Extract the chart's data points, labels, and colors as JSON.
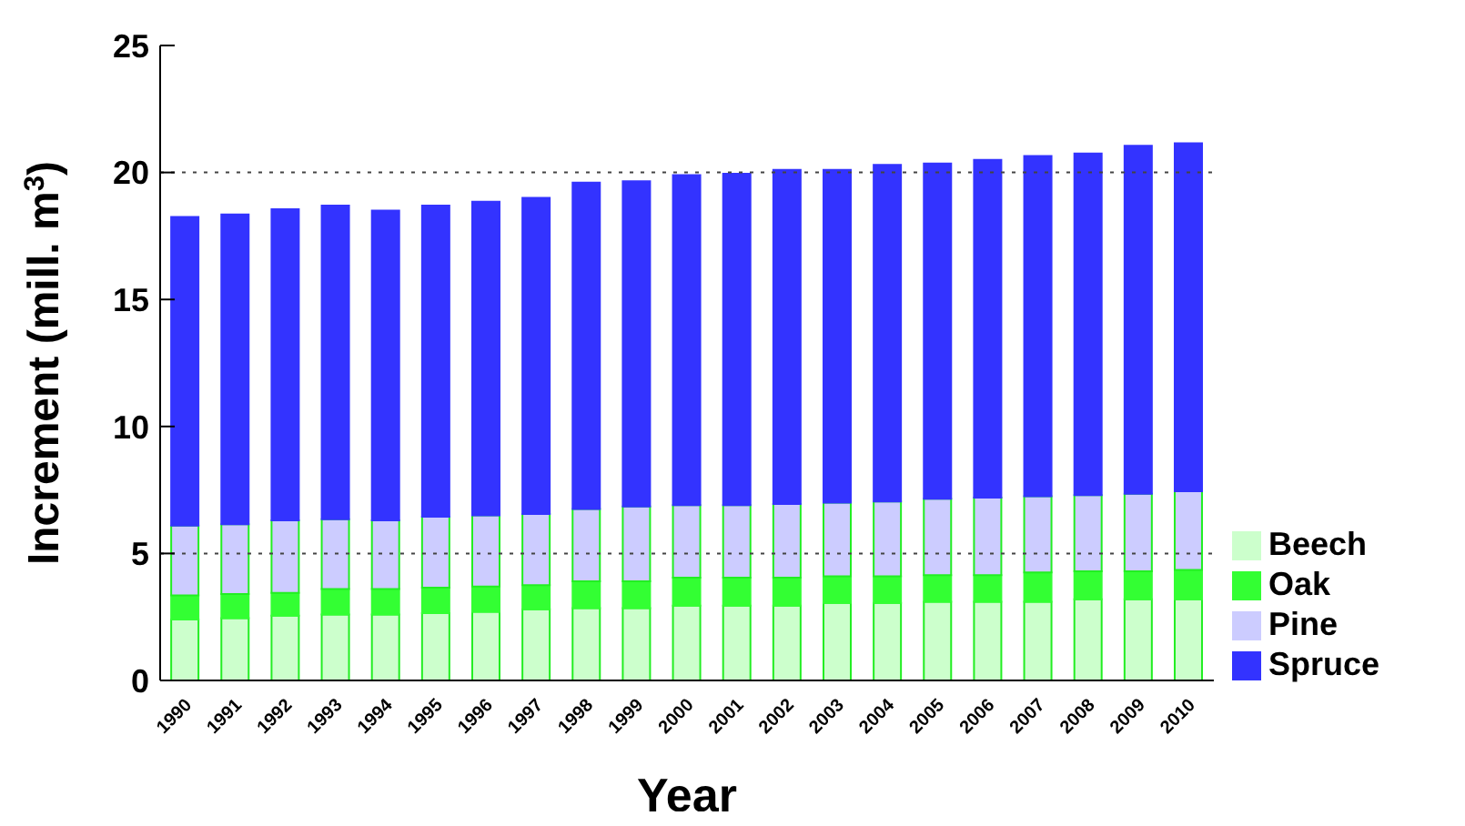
{
  "chart_data": {
    "type": "bar",
    "stacked": true,
    "xlabel": "Year",
    "ylabel": "Increment (mill. m$^{3}$)",
    "categories": [
      "1990",
      "1991",
      "1992",
      "1993",
      "1994",
      "1995",
      "1996",
      "1997",
      "1998",
      "1999",
      "2000",
      "2001",
      "2002",
      "2003",
      "2004",
      "2005",
      "2006",
      "2007",
      "2008",
      "2009",
      "2010"
    ],
    "series": [
      {
        "name": "Beech",
        "color": "#ccffcc",
        "values": [
          2.4,
          2.45,
          2.55,
          2.6,
          2.6,
          2.65,
          2.7,
          2.8,
          2.85,
          2.85,
          2.95,
          2.95,
          2.95,
          3.05,
          3.05,
          3.1,
          3.1,
          3.1,
          3.2,
          3.2,
          3.2
        ]
      },
      {
        "name": "Oak",
        "color": "#33ff33",
        "values": [
          0.95,
          0.95,
          0.9,
          1.0,
          1.0,
          1.0,
          1.0,
          0.95,
          1.05,
          1.05,
          1.1,
          1.1,
          1.1,
          1.05,
          1.05,
          1.05,
          1.05,
          1.15,
          1.1,
          1.1,
          1.15
        ]
      },
      {
        "name": "Pine",
        "color": "#ccccff",
        "values": [
          2.75,
          2.75,
          2.85,
          2.75,
          2.7,
          2.8,
          2.8,
          2.8,
          2.85,
          2.95,
          2.85,
          2.85,
          2.9,
          2.9,
          2.95,
          3.0,
          3.05,
          3.0,
          3.0,
          3.05,
          3.1
        ]
      },
      {
        "name": "Spruce",
        "color": "#3333ff",
        "values": [
          12.15,
          12.2,
          12.25,
          12.35,
          12.2,
          12.25,
          12.35,
          12.45,
          12.85,
          12.8,
          13.0,
          13.05,
          13.15,
          13.1,
          13.25,
          13.2,
          13.3,
          13.4,
          13.45,
          13.7,
          13.7
        ]
      }
    ],
    "ylim": [
      0,
      25
    ],
    "yticks": [
      0,
      5,
      10,
      15,
      20,
      25
    ],
    "ref_lines": [
      {
        "axis": "y",
        "value": 5,
        "line_style": "dotted"
      },
      {
        "axis": "y",
        "value": 20,
        "line_style": "dotted"
      }
    ],
    "legend": "right"
  }
}
